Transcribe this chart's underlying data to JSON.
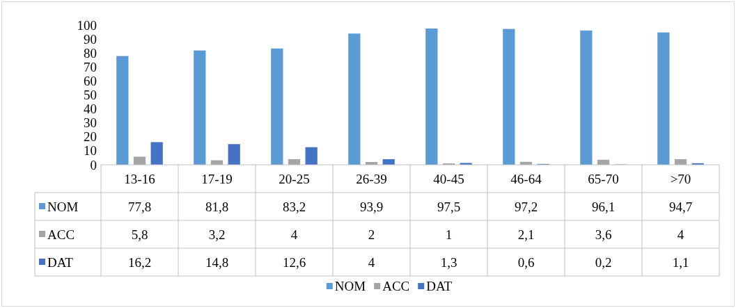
{
  "chart_data": {
    "type": "bar",
    "categories": [
      "13-16",
      "17-19",
      "20-25",
      "26-39",
      "40-45",
      "46-64",
      "65-70",
      ">70"
    ],
    "series": [
      {
        "name": "NOM",
        "color": "#5b9bd5",
        "values": [
          77.8,
          81.8,
          83.2,
          93.9,
          97.5,
          97.2,
          96.1,
          94.7
        ],
        "value_labels": [
          "77,8",
          "81,8",
          "83,2",
          "93,9",
          "97,5",
          "97,2",
          "96,1",
          "94,7"
        ]
      },
      {
        "name": "ACC",
        "color": "#a5a5a5",
        "values": [
          5.8,
          3.2,
          4,
          2,
          1,
          2.1,
          3.6,
          4
        ],
        "value_labels": [
          "5,8",
          "3,2",
          "4",
          "2",
          "1",
          "2,1",
          "3,6",
          "4"
        ]
      },
      {
        "name": "DAT",
        "color": "#4472c4",
        "values": [
          16.2,
          14.8,
          12.6,
          4,
          1.3,
          0.6,
          0.2,
          1.1
        ],
        "value_labels": [
          "16,2",
          "14,8",
          "12,6",
          "4",
          "1,3",
          "0,6",
          "0,2",
          "1,1"
        ]
      }
    ],
    "ylim": [
      0,
      100
    ],
    "yticks": [
      0,
      10,
      20,
      30,
      40,
      50,
      60,
      70,
      80,
      90,
      100
    ],
    "grid": false,
    "legend": "bottom"
  }
}
